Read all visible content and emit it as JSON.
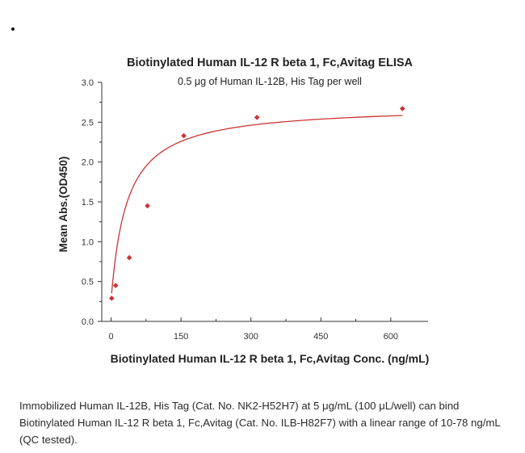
{
  "chart_data": {
    "type": "line",
    "title": "Biotinylated Human IL-12 R beta 1, Fc,Avitag ELISA",
    "subtitle": "0.5 μg of Human IL-12B, His Tag per well",
    "xlabel": "Biotinylated Human IL-12 R beta 1, Fc,Avitag Conc. (ng/mL)",
    "ylabel": "Mean Abs.(OD450)",
    "xlim": [
      -20,
      680
    ],
    "ylim": [
      0,
      3.0
    ],
    "xticks": [
      {
        "value": 0,
        "label": "0"
      },
      {
        "value": 150,
        "label": "150"
      },
      {
        "value": 300,
        "label": "300"
      },
      {
        "value": 450,
        "label": "450"
      },
      {
        "value": 600,
        "label": "600"
      }
    ],
    "yticks": [
      {
        "value": 0,
        "label": "0.0"
      },
      {
        "value": 0.5,
        "label": "0.5"
      },
      {
        "value": 1.0,
        "label": "1.0"
      },
      {
        "value": 1.5,
        "label": "1.5"
      },
      {
        "value": 2.0,
        "label": "2.0"
      },
      {
        "value": 2.5,
        "label": "2.5"
      },
      {
        "value": 3.0,
        "label": "3.0"
      }
    ],
    "grid": false,
    "series": [
      {
        "points": [
          {
            "x": 1.2,
            "y": 0.29
          },
          {
            "x": 9.8,
            "y": 0.45
          },
          {
            "x": 39,
            "y": 0.8
          },
          {
            "x": 78,
            "y": 1.45
          },
          {
            "x": 156,
            "y": 2.33
          },
          {
            "x": 313,
            "y": 2.56
          },
          {
            "x": 625,
            "y": 2.67
          }
        ],
        "fit": {
          "model": "hyperbolic",
          "bottom": 0.27,
          "top": 2.71,
          "ec50": 34
        },
        "color": "#cc3333"
      }
    ]
  },
  "caption": "Immobilized Human IL-12B, His Tag (Cat. No. NK2-H52H7) at 5 μg/mL (100 μL/well) can bind Biotinylated Human IL-12 R beta 1, Fc,Avitag (Cat. No. ILB-H82F7) with a linear range of 10-78 ng/mL (QC tested)."
}
